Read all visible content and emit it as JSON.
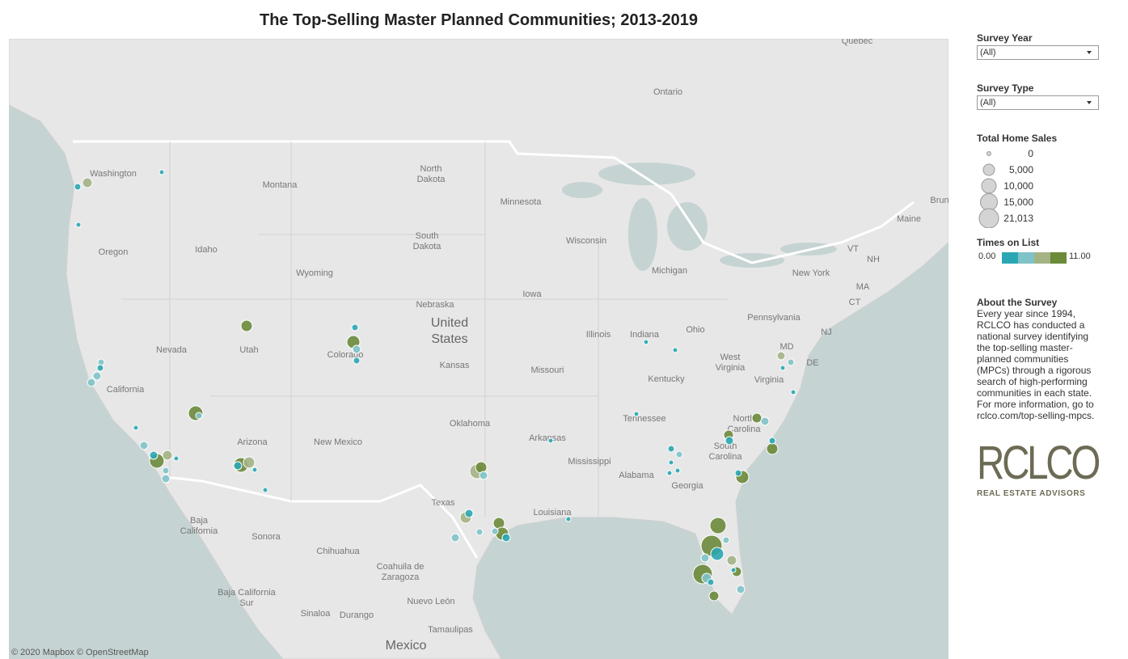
{
  "title": "The Top-Selling Master Planned Communities; 2013-2019",
  "map": {
    "labels": [
      [
        "Ontario"
      ],
      [
        "Québec"
      ],
      [
        "Washington"
      ],
      [
        "Montana"
      ],
      [
        "North",
        "Dakota"
      ],
      [
        "Minnesota"
      ],
      [
        "Maine"
      ],
      [
        "Brun"
      ],
      [
        "Oregon"
      ],
      [
        "Idaho"
      ],
      [
        "South",
        "Dakota"
      ],
      [
        "Wisconsin"
      ],
      [
        "Wyoming"
      ],
      [
        "Michigan"
      ],
      [
        "New York"
      ],
      [
        "VT"
      ],
      [
        "NH"
      ],
      [
        "MA"
      ],
      [
        "CT"
      ],
      [
        "Nebraska"
      ],
      [
        "Iowa"
      ],
      [
        "Pennsylvania"
      ],
      [
        "NJ"
      ],
      [
        "United",
        "States"
      ],
      [
        "Nevada"
      ],
      [
        "Utah"
      ],
      [
        "Colorado"
      ],
      [
        "Illinois"
      ],
      [
        "Indiana"
      ],
      [
        "Ohio"
      ],
      [
        "MD"
      ],
      [
        "DE"
      ],
      [
        "West",
        "Virginia"
      ],
      [
        "Kansas"
      ],
      [
        "Missouri"
      ],
      [
        "Kentucky"
      ],
      [
        "Virginia"
      ],
      [
        "California"
      ],
      [
        "Tennessee"
      ],
      [
        "North",
        "Carolina"
      ],
      [
        "Oklahoma"
      ],
      [
        "Arizona"
      ],
      [
        "New Mexico"
      ],
      [
        "Arkansas"
      ],
      [
        "Mississippi"
      ],
      [
        "South",
        "Carolina"
      ],
      [
        "Alabama"
      ],
      [
        "Georgia"
      ],
      [
        "Texas"
      ],
      [
        "Louisiana"
      ],
      [
        "Baja",
        "California"
      ],
      [
        "Sonora"
      ],
      [
        "Chihuahua"
      ],
      [
        "Coahuila de",
        "Zaragoza"
      ],
      [
        "Baja California",
        "Sur"
      ],
      [
        "Nuevo León"
      ],
      [
        "Sinaloa"
      ],
      [
        "Durango"
      ],
      [
        "Tamaulipas"
      ],
      [
        "Mexico"
      ]
    ],
    "attribution": "© 2020 Mapbox © OpenStreetMap"
  },
  "filters": [
    {
      "label": "Survey Year",
      "value": "(All)"
    },
    {
      "label": "Survey Type",
      "value": "(All)"
    }
  ],
  "size_legend": {
    "title": "Total Home Sales",
    "labels": [
      "0",
      "5,000",
      "10,000",
      "15,000",
      "21,013"
    ]
  },
  "color_legend": {
    "title": "Times on List",
    "min": "0.00",
    "max": "11.00"
  },
  "about": {
    "title": "About the Survey",
    "text": "Every year since 1994, RCLCO has conducted a national survey identifying the top-selling master-planned communities (MPCs) through a rigorous search of high-performing communities in each state. For more information, go to rclco.com/top-selling-mpcs."
  },
  "logo": {
    "name": "RCLCO",
    "tagline": "REAL ESTATE ADVISORS"
  }
}
